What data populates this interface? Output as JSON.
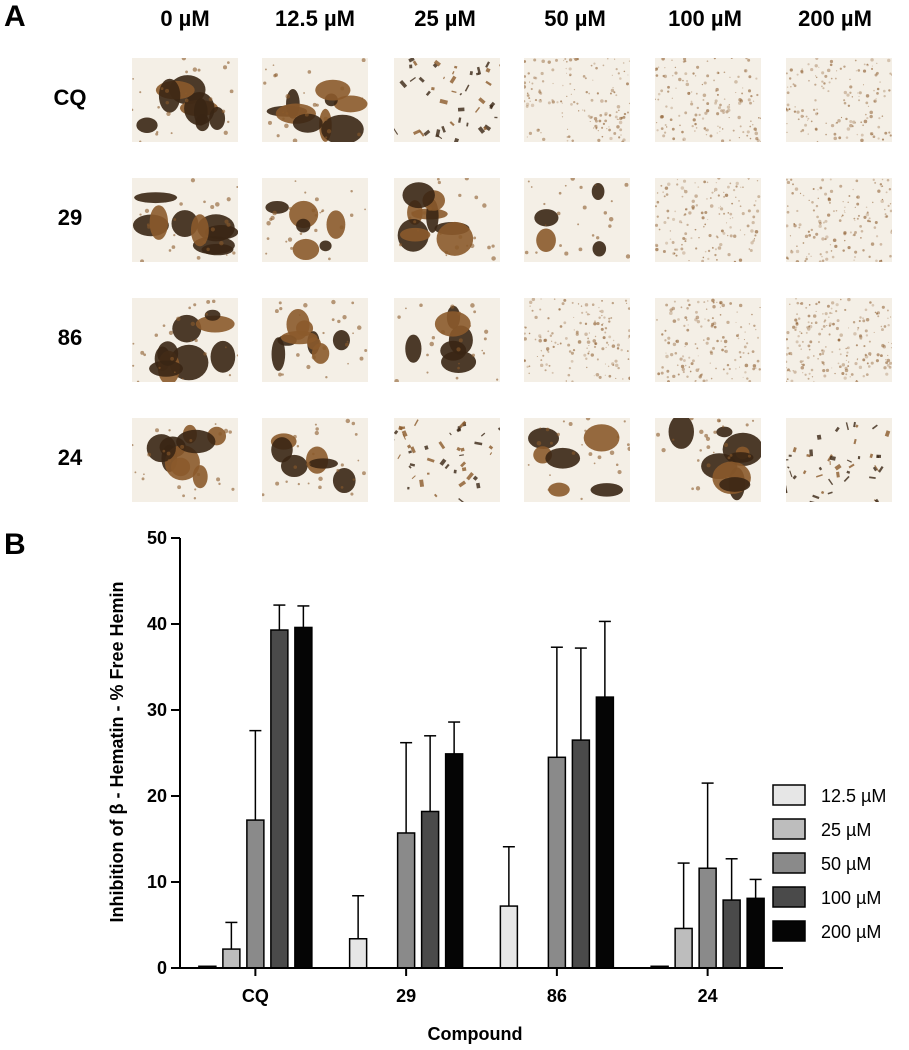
{
  "panel_a": {
    "letter": "A",
    "columns": [
      "0 µM",
      "12.5 µM",
      "25 µM",
      "50 µM",
      "100 µM",
      "200 µM"
    ],
    "rows": [
      "CQ",
      "29",
      "86",
      "24"
    ],
    "cells": [
      [
        "large clumps",
        "large clumps",
        "fragmented",
        "fine diffuse",
        "fine diffuse",
        "fine diffuse"
      ],
      [
        "large clumps",
        "clumps",
        "large clumps",
        "small clumps",
        "fine diffuse",
        "fine diffuse"
      ],
      [
        "large clumps",
        "large clumps",
        "clumps",
        "fine diffuse",
        "fine diffuse",
        "diffuse"
      ],
      [
        "large clumps",
        "clumps",
        "fragmented",
        "clumps",
        "large clumps",
        "fragmented"
      ]
    ],
    "colors": {
      "hemozoin_dark": "#3a2614",
      "hemozoin_brown": "#8b5a2b",
      "background": "#f4efe6"
    }
  },
  "chart_data": {
    "type": "bar",
    "panel_letter": "B",
    "categories": [
      "CQ",
      "29",
      "86",
      "24"
    ],
    "xlabel": "Compound",
    "ylabel": "Inhibition of β - Hematin -  % Free Hemin",
    "ylim": [
      0,
      50
    ],
    "yticks": [
      0,
      10,
      20,
      30,
      40,
      50
    ],
    "grid": false,
    "legend_placement": "right",
    "series": [
      {
        "name": "12.5 µM",
        "color": "#e6e6e6",
        "values": [
          0.2,
          3.4,
          7.2,
          0.2
        ],
        "errors": [
          0,
          5.0,
          6.9,
          0
        ]
      },
      {
        "name": "25 µM",
        "color": "#bdbdbd",
        "values": [
          2.2,
          0,
          0,
          4.6
        ],
        "errors": [
          3.1,
          0,
          0,
          7.6
        ]
      },
      {
        "name": "50 µM",
        "color": "#8a8a8a",
        "values": [
          17.2,
          15.7,
          24.5,
          11.6
        ],
        "errors": [
          10.4,
          10.5,
          12.8,
          9.9
        ]
      },
      {
        "name": "100 µM",
        "color": "#4a4a4a",
        "values": [
          39.3,
          18.2,
          26.5,
          7.9
        ],
        "errors": [
          2.9,
          8.8,
          10.7,
          4.8
        ]
      },
      {
        "name": "200 µM",
        "color": "#050505",
        "values": [
          39.6,
          24.9,
          31.5,
          8.1
        ],
        "errors": [
          2.5,
          3.7,
          8.8,
          2.2
        ]
      }
    ]
  }
}
